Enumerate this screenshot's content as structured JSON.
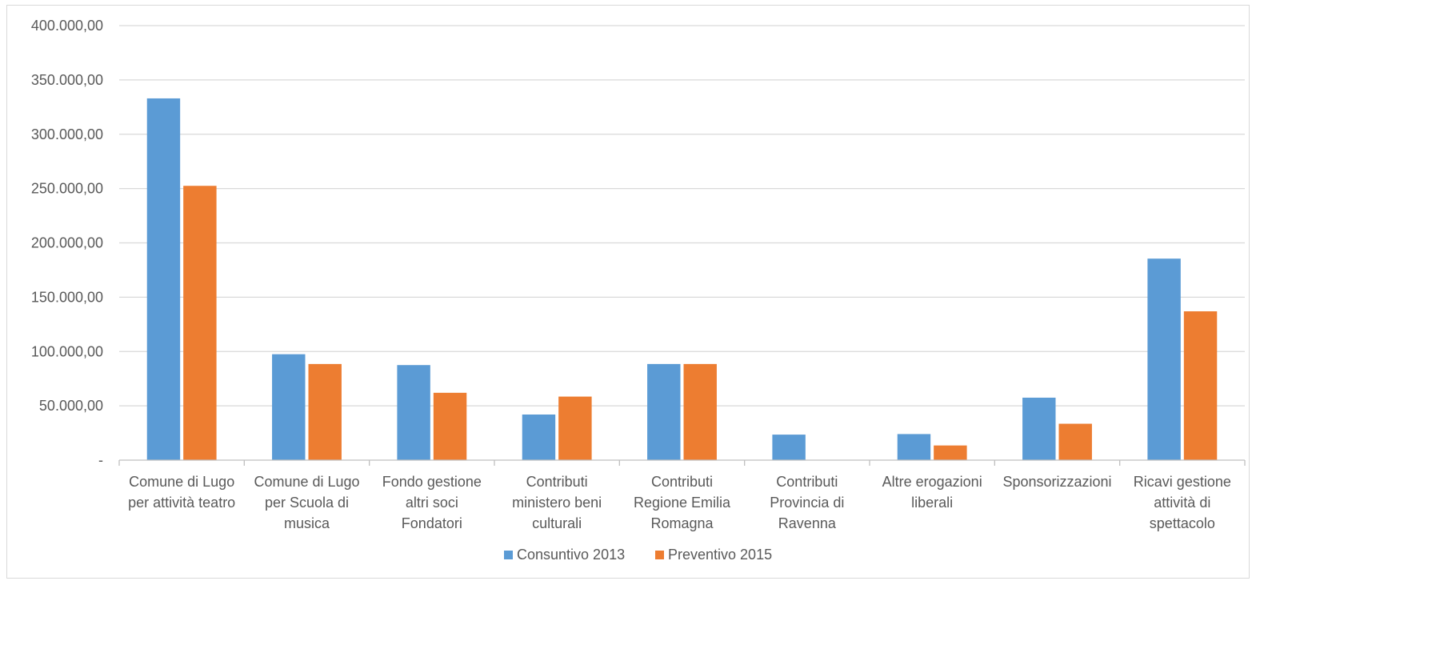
{
  "chart_data": {
    "type": "bar",
    "categories": [
      [
        "Comune di Lugo",
        "per attività teatro"
      ],
      [
        "Comune di Lugo",
        "per Scuola di",
        "musica"
      ],
      [
        "Fondo gestione",
        "altri soci",
        "Fondatori"
      ],
      [
        "Contributi",
        "ministero beni",
        "culturali"
      ],
      [
        "Contributi",
        "Regione Emilia",
        "Romagna"
      ],
      [
        "Contributi",
        "Provincia di",
        "Ravenna"
      ],
      [
        "Altre erogazioni",
        "liberali"
      ],
      [
        "Sponsorizzazioni"
      ],
      [
        "Ricavi gestione",
        "attività di",
        "spettacolo"
      ]
    ],
    "series": [
      {
        "name": "Consuntivo 2013",
        "color": "#5b9bd5",
        "values": [
          333000,
          97500,
          87500,
          42000,
          88500,
          23500,
          24000,
          57500,
          185500
        ]
      },
      {
        "name": "Preventivo 2015",
        "color": "#ed7d31",
        "values": [
          252500,
          88500,
          62000,
          58500,
          88500,
          0,
          13500,
          33500,
          137000
        ]
      }
    ],
    "yticks": [
      {
        "value": 0,
        "label": "-"
      },
      {
        "value": 50000,
        "label": "50.000,00"
      },
      {
        "value": 100000,
        "label": "100.000,00"
      },
      {
        "value": 150000,
        "label": "150.000,00"
      },
      {
        "value": 200000,
        "label": "200.000,00"
      },
      {
        "value": 250000,
        "label": "250.000,00"
      },
      {
        "value": 300000,
        "label": "300.000,00"
      },
      {
        "value": 350000,
        "label": "350.000,00"
      },
      {
        "value": 400000,
        "label": "400.000,00"
      }
    ],
    "ylim": [
      0,
      400000
    ],
    "grid": true,
    "legend_position": "bottom",
    "gridline_color": "#d9d9d9",
    "axis_color": "#bfbfbf",
    "text_color": "#595959"
  }
}
